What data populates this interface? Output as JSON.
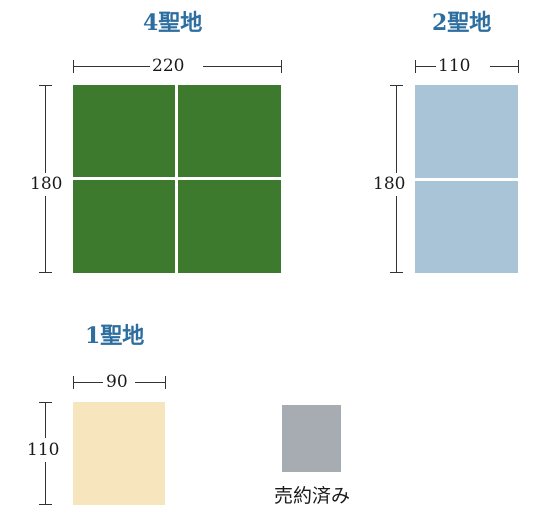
{
  "plots": {
    "four": {
      "title": "4聖地",
      "width_label": "220",
      "height_label": "180",
      "color": "#3d7a2e"
    },
    "two": {
      "title": "2聖地",
      "width_label": "110",
      "height_label": "180",
      "color": "#a9c4d6"
    },
    "one": {
      "title": "1聖地",
      "width_label": "90",
      "height_label": "110",
      "color": "#f7e6bd"
    }
  },
  "legend": {
    "sold_label": "売約済み",
    "sold_color": "#a7acb3"
  }
}
